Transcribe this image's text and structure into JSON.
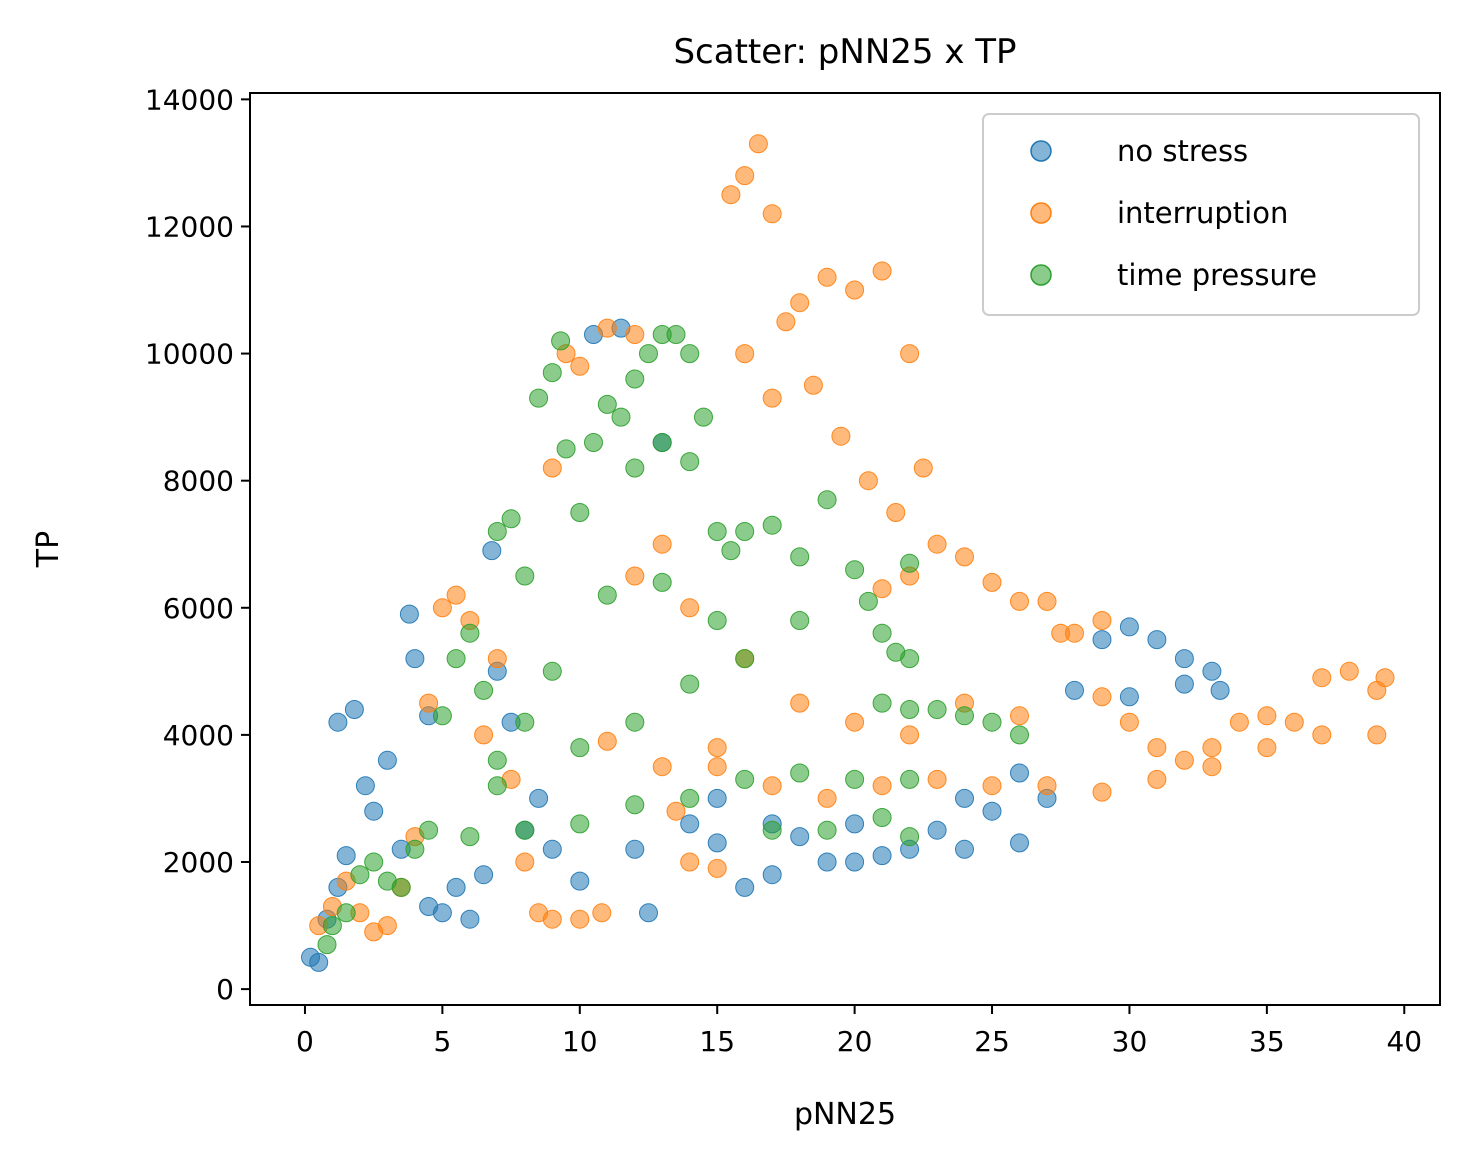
{
  "chart_data": {
    "type": "scatter",
    "title": "Scatter: pNN25 x TP",
    "xlabel": "pNN25",
    "ylabel": "TP",
    "xlim": [
      -2,
      41.3
    ],
    "ylim": [
      -250,
      14100
    ],
    "xticks": [
      0,
      5,
      10,
      15,
      20,
      25,
      30,
      35,
      40
    ],
    "yticks": [
      0,
      2000,
      4000,
      6000,
      8000,
      10000,
      12000,
      14000
    ],
    "grid": false,
    "legend_position": "top-right",
    "series": [
      {
        "name": "no stress",
        "color": "#1f77b4",
        "points": [
          [
            0.2,
            500
          ],
          [
            0.5,
            420
          ],
          [
            0.8,
            1100
          ],
          [
            1.2,
            1600
          ],
          [
            1.5,
            2100
          ],
          [
            1.2,
            4200
          ],
          [
            1.8,
            4400
          ],
          [
            2.2,
            3200
          ],
          [
            2.5,
            2800
          ],
          [
            3,
            3600
          ],
          [
            3.8,
            5900
          ],
          [
            3.5,
            2200
          ],
          [
            4,
            5200
          ],
          [
            4.5,
            4300
          ],
          [
            4.5,
            1300
          ],
          [
            5,
            1200
          ],
          [
            5.5,
            1600
          ],
          [
            6,
            1100
          ],
          [
            6.5,
            1800
          ],
          [
            6.8,
            6900
          ],
          [
            7,
            5000
          ],
          [
            7.5,
            4200
          ],
          [
            8,
            2500
          ],
          [
            8.5,
            3000
          ],
          [
            9,
            2200
          ],
          [
            10,
            1700
          ],
          [
            10.5,
            10300
          ],
          [
            11.5,
            10400
          ],
          [
            12,
            2200
          ],
          [
            12.5,
            1200
          ],
          [
            13,
            8600
          ],
          [
            14,
            2600
          ],
          [
            15,
            2300
          ],
          [
            16,
            1600
          ],
          [
            17,
            1800
          ],
          [
            18,
            2400
          ],
          [
            19,
            2000
          ],
          [
            20,
            2000
          ],
          [
            21,
            2100
          ],
          [
            22,
            2200
          ],
          [
            23,
            2500
          ],
          [
            24,
            2200
          ],
          [
            25,
            2800
          ],
          [
            26,
            2300
          ],
          [
            27,
            3000
          ],
          [
            28,
            4700
          ],
          [
            29,
            5500
          ],
          [
            30,
            5700
          ],
          [
            31,
            5500
          ],
          [
            32,
            5200
          ],
          [
            33,
            5000
          ],
          [
            33.3,
            4700
          ],
          [
            32,
            4800
          ],
          [
            30,
            4600
          ],
          [
            26,
            3400
          ],
          [
            24,
            3000
          ],
          [
            20,
            2600
          ],
          [
            17,
            2600
          ],
          [
            15,
            3000
          ]
        ]
      },
      {
        "name": "interruption",
        "color": "#ff7f0e",
        "points": [
          [
            0.5,
            1000
          ],
          [
            1,
            1300
          ],
          [
            1.5,
            1700
          ],
          [
            2,
            1200
          ],
          [
            2.5,
            900
          ],
          [
            3,
            1000
          ],
          [
            3.5,
            1600
          ],
          [
            4,
            2400
          ],
          [
            4.5,
            4500
          ],
          [
            5,
            6000
          ],
          [
            5.5,
            6200
          ],
          [
            6,
            5800
          ],
          [
            6.5,
            4000
          ],
          [
            7,
            5200
          ],
          [
            7.5,
            3300
          ],
          [
            8,
            2000
          ],
          [
            8.5,
            1200
          ],
          [
            9,
            1100
          ],
          [
            10,
            1100
          ],
          [
            10.8,
            1200
          ],
          [
            9,
            8200
          ],
          [
            9.5,
            10000
          ],
          [
            10,
            9800
          ],
          [
            11,
            10400
          ],
          [
            12,
            10300
          ],
          [
            13,
            7000
          ],
          [
            13.5,
            2800
          ],
          [
            14,
            2000
          ],
          [
            15,
            1900
          ],
          [
            15,
            3500
          ],
          [
            15.5,
            12500
          ],
          [
            16,
            12800
          ],
          [
            16.5,
            13300
          ],
          [
            17,
            12200
          ],
          [
            17.5,
            10500
          ],
          [
            18,
            10800
          ],
          [
            19,
            11200
          ],
          [
            20,
            11000
          ],
          [
            21,
            11300
          ],
          [
            22,
            10000
          ],
          [
            22.5,
            8200
          ],
          [
            21.5,
            7500
          ],
          [
            21,
            6300
          ],
          [
            22,
            6500
          ],
          [
            23,
            7000
          ],
          [
            24,
            6800
          ],
          [
            25,
            6400
          ],
          [
            26,
            6100
          ],
          [
            27,
            6100
          ],
          [
            27.5,
            5600
          ],
          [
            28,
            5600
          ],
          [
            29,
            5800
          ],
          [
            29,
            4600
          ],
          [
            30,
            4200
          ],
          [
            31,
            3800
          ],
          [
            32,
            3600
          ],
          [
            33,
            3800
          ],
          [
            34,
            4200
          ],
          [
            35,
            4300
          ],
          [
            36,
            4200
          ],
          [
            37,
            4900
          ],
          [
            38,
            5000
          ],
          [
            39,
            4700
          ],
          [
            39.3,
            4900
          ],
          [
            39,
            4000
          ],
          [
            37,
            4000
          ],
          [
            35,
            3800
          ],
          [
            33,
            3500
          ],
          [
            31,
            3300
          ],
          [
            29,
            3100
          ],
          [
            27,
            3200
          ],
          [
            25,
            3200
          ],
          [
            23,
            3300
          ],
          [
            21,
            3200
          ],
          [
            19,
            3000
          ],
          [
            17,
            3200
          ],
          [
            15,
            3800
          ],
          [
            13,
            3500
          ],
          [
            11,
            3900
          ],
          [
            12,
            6500
          ],
          [
            14,
            6000
          ],
          [
            16,
            5200
          ],
          [
            18,
            4500
          ],
          [
            20,
            4200
          ],
          [
            22,
            4000
          ],
          [
            24,
            4500
          ],
          [
            26,
            4300
          ],
          [
            18.5,
            9500
          ],
          [
            19.5,
            8700
          ],
          [
            20.5,
            8000
          ],
          [
            16,
            10000
          ],
          [
            17,
            9300
          ]
        ]
      },
      {
        "name": "time pressure",
        "color": "#2ca02c",
        "points": [
          [
            0.8,
            700
          ],
          [
            1,
            1000
          ],
          [
            1.5,
            1200
          ],
          [
            2,
            1800
          ],
          [
            2.5,
            2000
          ],
          [
            3,
            1700
          ],
          [
            3.5,
            1600
          ],
          [
            4,
            2200
          ],
          [
            4.5,
            2500
          ],
          [
            5,
            4300
          ],
          [
            5.5,
            5200
          ],
          [
            6,
            5600
          ],
          [
            6.5,
            4700
          ],
          [
            7,
            3600
          ],
          [
            7,
            7200
          ],
          [
            7.5,
            7400
          ],
          [
            8,
            6500
          ],
          [
            8.5,
            9300
          ],
          [
            9,
            9700
          ],
          [
            9.3,
            10200
          ],
          [
            9.5,
            8500
          ],
          [
            10,
            7500
          ],
          [
            10.5,
            8600
          ],
          [
            11,
            9200
          ],
          [
            11.5,
            9000
          ],
          [
            12,
            9600
          ],
          [
            12.5,
            10000
          ],
          [
            13,
            10300
          ],
          [
            13.5,
            10300
          ],
          [
            14,
            10000
          ],
          [
            14.5,
            9000
          ],
          [
            15,
            7200
          ],
          [
            15.5,
            6900
          ],
          [
            16,
            7200
          ],
          [
            17,
            7300
          ],
          [
            18,
            6800
          ],
          [
            19,
            7700
          ],
          [
            20,
            6600
          ],
          [
            20.5,
            6100
          ],
          [
            21,
            5600
          ],
          [
            21.5,
            5300
          ],
          [
            22,
            6700
          ],
          [
            22,
            5200
          ],
          [
            21,
            4500
          ],
          [
            22,
            4400
          ],
          [
            23,
            4400
          ],
          [
            24,
            4300
          ],
          [
            25,
            4200
          ],
          [
            26,
            4000
          ],
          [
            22,
            3300
          ],
          [
            20,
            3300
          ],
          [
            18,
            3400
          ],
          [
            16,
            3300
          ],
          [
            14,
            3000
          ],
          [
            12,
            2900
          ],
          [
            10,
            2600
          ],
          [
            8,
            2500
          ],
          [
            6,
            2400
          ],
          [
            17,
            2500
          ],
          [
            19,
            2500
          ],
          [
            21,
            2700
          ],
          [
            22,
            2400
          ],
          [
            10,
            3800
          ],
          [
            12,
            4200
          ],
          [
            14,
            4800
          ],
          [
            16,
            5200
          ],
          [
            18,
            5800
          ],
          [
            11,
            6200
          ],
          [
            13,
            6400
          ],
          [
            15,
            5800
          ],
          [
            9,
            5000
          ],
          [
            8,
            4200
          ],
          [
            7,
            3200
          ],
          [
            12,
            8200
          ],
          [
            13,
            8600
          ],
          [
            14,
            8300
          ]
        ]
      }
    ]
  }
}
